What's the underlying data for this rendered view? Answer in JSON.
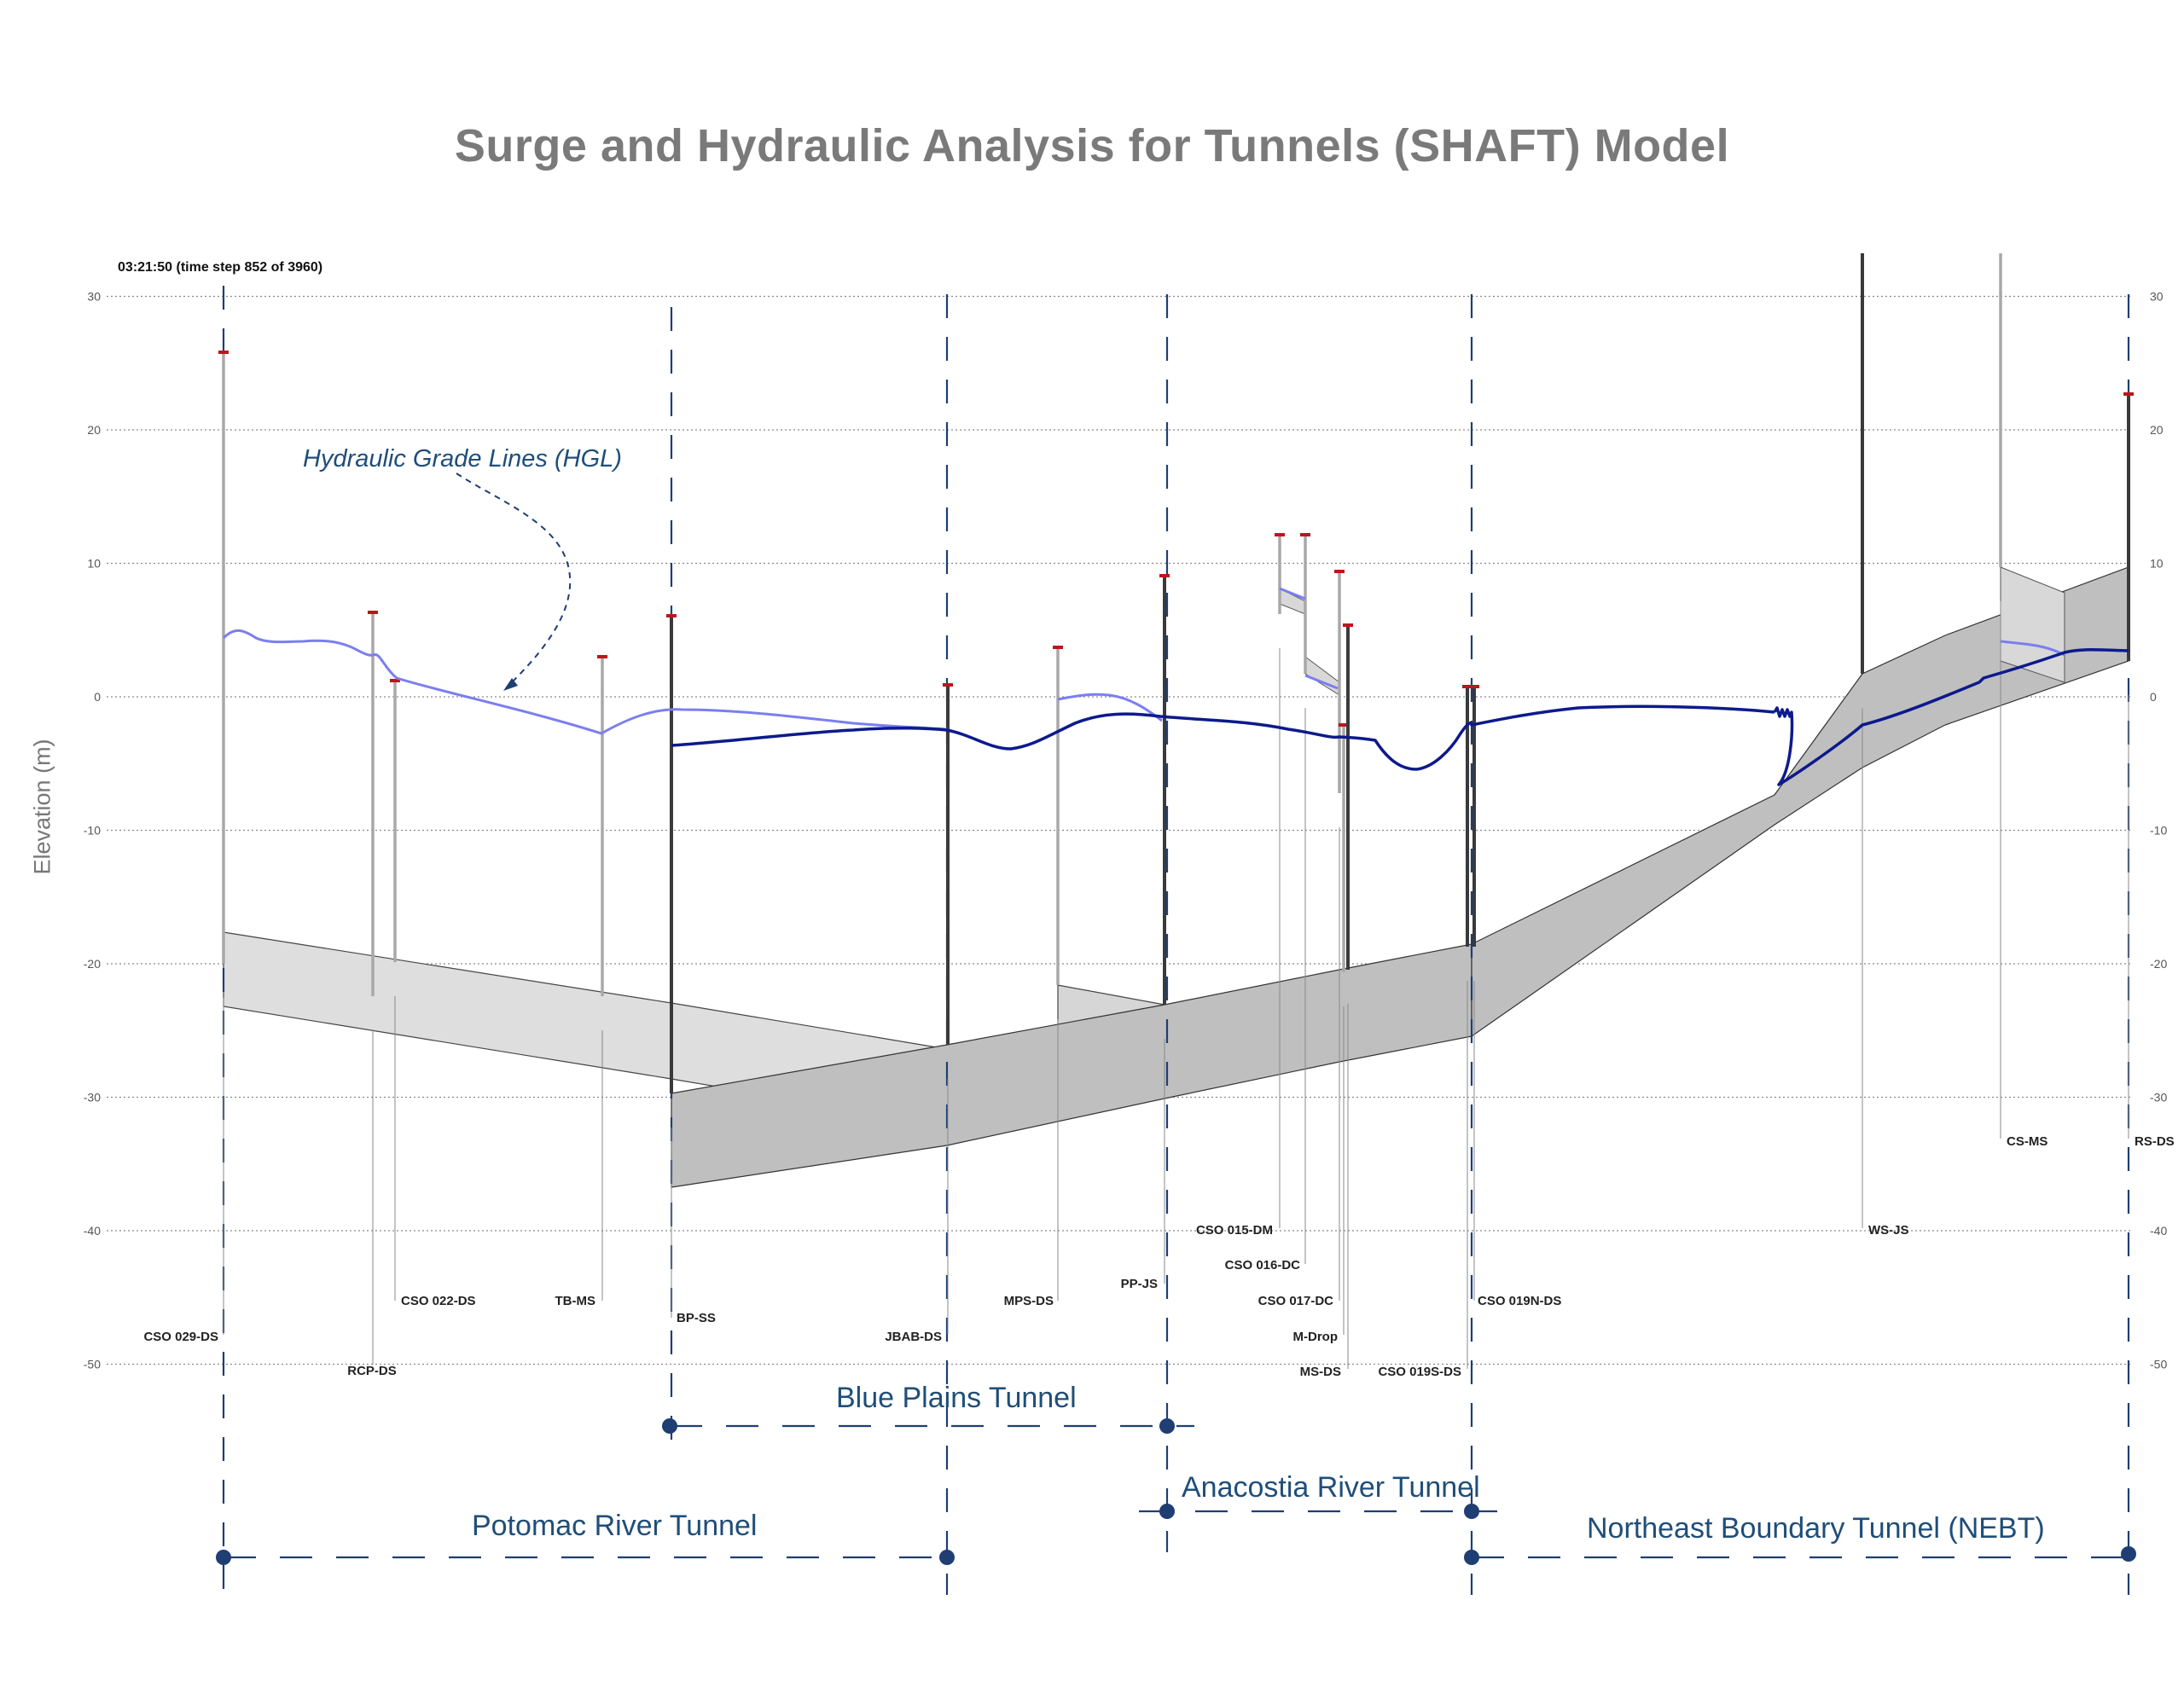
{
  "title": "Surge and Hydraulic Analysis for Tunnels (SHAFT) Model",
  "timestamp": "03:21:50 (time step 852 of 3960)",
  "y_axis": {
    "label": "Elevation (m)",
    "ticks": [
      "30",
      "20",
      "10",
      "0",
      "-10",
      "-20",
      "-30",
      "-40",
      "-50"
    ],
    "values": [
      30,
      20,
      10,
      0,
      -10,
      -20,
      -30,
      -40,
      -50
    ]
  },
  "annotation": "Hydraulic Grade Lines (HGL)",
  "shafts": [
    "CSO 029-DS",
    "RCP-DS",
    "CSO 022-DS",
    "TB-MS",
    "BP-SS",
    "JBAB-DS",
    "MPS-DS",
    "PP-JS",
    "CSO 015-DM",
    "CSO 016-DC",
    "CSO 017-DC",
    "M-Drop",
    "MS-DS",
    "CSO 019S-DS",
    "CSO 019N-DS",
    "WS-JS",
    "CS-MS",
    "RS-DS"
  ],
  "tunnels": {
    "blue_plains": "Blue Plains Tunnel",
    "potomac": "Potomac River Tunnel",
    "anacostia": "Anacostia River Tunnel",
    "nebt": "Northeast Boundary Tunnel (NEBT)"
  },
  "colors": {
    "hgl_light": "#7b7ef0",
    "hgl_dark": "#0d1a8c",
    "tunnel_light": "#dcdcdc",
    "tunnel_dark": "#bdbdbd",
    "divider": "#1f3e73",
    "title": "#7a7a7a"
  }
}
